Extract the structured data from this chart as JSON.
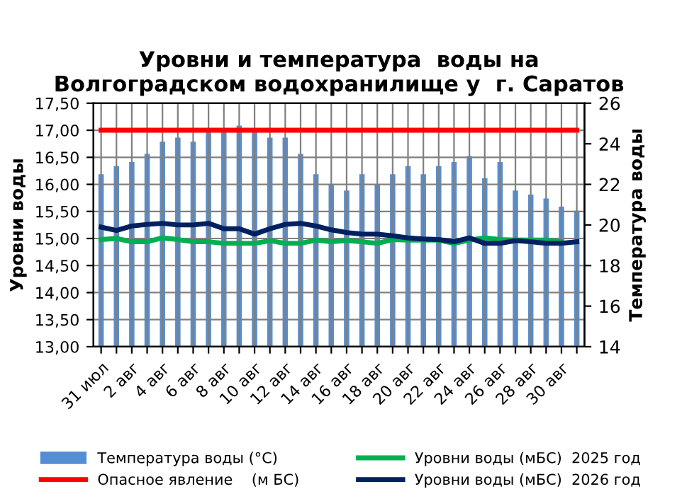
{
  "chart_data": {
    "type": "line",
    "title": "Уровни и температура  воды на\nВолгоградском водохранилище у  г. Саратов",
    "categories": [
      "31 июл",
      null,
      "2 авг",
      null,
      "4 авг",
      null,
      "6 авг",
      null,
      "8 авг",
      null,
      "10 авг",
      null,
      "12 авг",
      null,
      "14 авг",
      null,
      "16 авг",
      null,
      "18 авг",
      null,
      "20 авг",
      null,
      "22 авг",
      null,
      "24 авг",
      null,
      "26 авг",
      null,
      "28 авг",
      null,
      "30 авг",
      null
    ],
    "ylabel": "Уровни воды",
    "y2label": "Температура воды",
    "ylim": [
      13,
      17.5
    ],
    "yticks": [
      {
        "value": 13,
        "label": "13,00"
      },
      {
        "value": 13.5,
        "label": "13,50"
      },
      {
        "value": 14,
        "label": "14,00"
      },
      {
        "value": 14.5,
        "label": "14,50"
      },
      {
        "value": 15,
        "label": "15,00"
      },
      {
        "value": 15.5,
        "label": "15,50"
      },
      {
        "value": 16,
        "label": "16,00"
      },
      {
        "value": 16.5,
        "label": "16,50"
      },
      {
        "value": 17,
        "label": "17,00"
      },
      {
        "value": 17.5,
        "label": "17,50"
      }
    ],
    "y2lim": [
      14,
      26
    ],
    "y2ticks": [
      14,
      16,
      18,
      20,
      22,
      24,
      26
    ],
    "grid": true,
    "legend": "bottom",
    "series": [
      {
        "name": "Температура воды (°C)",
        "type": "bar",
        "axis": "y2",
        "color": "#558ed5",
        "values": [
          22.5,
          22.9,
          23.1,
          23.5,
          24.1,
          24.3,
          24.1,
          24.6,
          24.7,
          24.9,
          24.6,
          24.3,
          24.3,
          23.5,
          22.5,
          22.0,
          21.7,
          22.5,
          22.0,
          22.5,
          22.9,
          22.5,
          22.9,
          23.1,
          23.4,
          22.3,
          23.1,
          21.7,
          21.5,
          21.3,
          20.9,
          20.7
        ]
      },
      {
        "name": "Опасное явление    (м БС)",
        "color": "#ff0000",
        "values": [
          17,
          17,
          17,
          17,
          17,
          17,
          17,
          17,
          17,
          17,
          17,
          17,
          17,
          17,
          17,
          17,
          17,
          17,
          17,
          17,
          17,
          17,
          17,
          17,
          17,
          17,
          17,
          17,
          17,
          17,
          17,
          17
        ]
      },
      {
        "name": "Уровни воды (мБС)  2025 год",
        "color": "#00b050",
        "values": [
          14.98,
          15.0,
          14.94,
          14.94,
          15.01,
          14.98,
          14.94,
          14.94,
          14.91,
          14.91,
          14.91,
          14.96,
          14.91,
          14.91,
          14.97,
          14.94,
          14.96,
          14.94,
          14.91,
          14.98,
          14.97,
          14.97,
          14.97,
          14.91,
          14.97,
          15.01,
          14.98,
          14.97,
          14.97,
          14.97,
          14.94,
          null
        ]
      },
      {
        "name": "Уровни воды (мБС)  2026 год",
        "color": "#002060",
        "values": [
          15.21,
          15.15,
          15.23,
          15.26,
          15.28,
          15.25,
          15.25,
          15.28,
          15.18,
          15.18,
          15.08,
          15.18,
          15.26,
          15.28,
          15.23,
          15.16,
          15.11,
          15.08,
          15.08,
          15.05,
          15.01,
          14.99,
          14.98,
          14.94,
          15.01,
          14.91,
          14.91,
          14.96,
          14.94,
          14.91,
          14.91,
          14.94
        ]
      }
    ]
  }
}
